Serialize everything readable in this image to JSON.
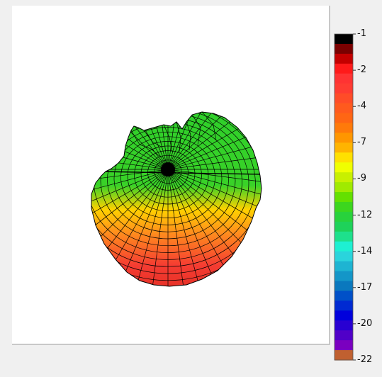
{
  "colorbar": {
    "ticks": [
      "-1",
      "-2",
      "-4",
      "-7",
      "-9",
      "-12",
      "-14",
      "-17",
      "-20",
      "-22"
    ],
    "colors": [
      "#000000",
      "#7a0000",
      "#c40000",
      "#ff1a1a",
      "#ff3333",
      "#ff3c32",
      "#ff4c28",
      "#ff5a1e",
      "#ff6614",
      "#ff7a0a",
      "#ff9600",
      "#ffb400",
      "#ffe000",
      "#f0ff00",
      "#c8f000",
      "#a0ea00",
      "#64e000",
      "#3cd61e",
      "#28d23c",
      "#1ed25a",
      "#1ee08c",
      "#1ef0d2",
      "#2ad4dc",
      "#1eb4d2",
      "#1496c8",
      "#0a78be",
      "#0050c8",
      "#002ad2",
      "#0000dc",
      "#2800d2",
      "#5000c8",
      "#7a00c0",
      "#c06030"
    ]
  },
  "surface": {
    "top_color": "#2fd02a",
    "bottom_color": "#f53c32",
    "mid_color": "#ff8a1e",
    "yellow_color": "#ffd200",
    "mesh_color": "#000000"
  }
}
